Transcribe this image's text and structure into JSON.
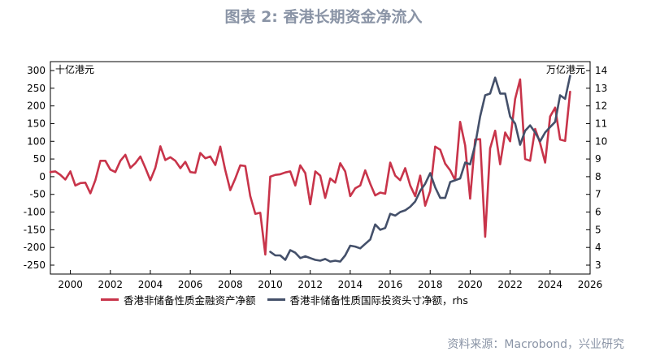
{
  "title": "图表 2:  香港长期资金净流入",
  "source": "资料来源：Macrobond，兴业研究",
  "chart_data": {
    "type": "line",
    "left_unit": "十亿港元",
    "right_unit": "万亿港元",
    "ylim_left": [
      -250,
      300
    ],
    "yticks_left": [
      -250,
      -200,
      -150,
      -100,
      -50,
      0,
      50,
      100,
      150,
      200,
      250,
      300
    ],
    "ylim_right": [
      3,
      14
    ],
    "yticks_right": [
      3,
      4,
      5,
      6,
      7,
      8,
      9,
      10,
      11,
      12,
      13,
      14
    ],
    "xlim": [
      1999,
      2026
    ],
    "xticks": [
      "2000",
      "2002",
      "2004",
      "2006",
      "2008",
      "2010",
      "2012",
      "2014",
      "2016",
      "2018",
      "2020",
      "2022",
      "2024",
      "2026"
    ],
    "series": [
      {
        "name": "香港非储备性质金融资产净额",
        "axis": "left",
        "color": "#c8344a",
        "x": [
          1999.0,
          1999.25,
          1999.5,
          1999.75,
          2000.0,
          2000.25,
          2000.5,
          2000.75,
          2001.0,
          2001.25,
          2001.5,
          2001.75,
          2002.0,
          2002.25,
          2002.5,
          2002.75,
          2003.0,
          2003.25,
          2003.5,
          2003.75,
          2004.0,
          2004.25,
          2004.5,
          2004.75,
          2005.0,
          2005.25,
          2005.5,
          2005.75,
          2006.0,
          2006.25,
          2006.5,
          2006.75,
          2007.0,
          2007.25,
          2007.5,
          2007.75,
          2008.0,
          2008.25,
          2008.5,
          2008.75,
          2009.0,
          2009.25,
          2009.5,
          2009.75,
          2010.0,
          2010.25,
          2010.5,
          2010.75,
          2011.0,
          2011.25,
          2011.5,
          2011.75,
          2012.0,
          2012.25,
          2012.5,
          2012.75,
          2013.0,
          2013.25,
          2013.5,
          2013.75,
          2014.0,
          2014.25,
          2014.5,
          2014.75,
          2015.0,
          2015.25,
          2015.5,
          2015.75,
          2016.0,
          2016.25,
          2016.5,
          2016.75,
          2017.0,
          2017.25,
          2017.5,
          2017.75,
          2018.0,
          2018.25,
          2018.5,
          2018.75,
          2019.0,
          2019.25,
          2019.5,
          2019.75,
          2020.0,
          2020.25,
          2020.5,
          2020.75,
          2021.0,
          2021.25,
          2021.5,
          2021.75,
          2022.0,
          2022.25,
          2022.5,
          2022.75,
          2023.0,
          2023.25,
          2023.5,
          2023.75,
          2024.0,
          2024.25,
          2024.5,
          2024.75,
          2025.0
        ],
        "values": [
          13,
          15,
          5,
          -8,
          15,
          -25,
          -18,
          -17,
          -47,
          -10,
          45,
          45,
          20,
          13,
          45,
          62,
          25,
          38,
          57,
          25,
          -10,
          25,
          86,
          47,
          55,
          45,
          24,
          42,
          13,
          11,
          67,
          52,
          57,
          33,
          85,
          18,
          -38,
          -5,
          32,
          30,
          -55,
          -105,
          -102,
          -220,
          0,
          5,
          7,
          12,
          15,
          -25,
          32,
          10,
          -78,
          15,
          3,
          -60,
          -5,
          -17,
          38,
          15,
          -55,
          -33,
          -25,
          18,
          -20,
          -53,
          -45,
          -48,
          40,
          3,
          -10,
          24,
          -25,
          -55,
          3,
          -82,
          -40,
          85,
          76,
          37,
          18,
          -10,
          155,
          88,
          -62,
          105,
          106,
          -170,
          80,
          130,
          35,
          125,
          100,
          220,
          275,
          50,
          45,
          135,
          95,
          40,
          170,
          195,
          105,
          101,
          240
        ]
      },
      {
        "name": "香港非储备性质国际投资头寸净额，rhs",
        "axis": "right",
        "color": "#44506a",
        "x": [
          2010.0,
          2010.25,
          2010.5,
          2010.75,
          2011.0,
          2011.25,
          2011.5,
          2011.75,
          2012.0,
          2012.25,
          2012.5,
          2012.75,
          2013.0,
          2013.25,
          2013.5,
          2013.75,
          2014.0,
          2014.25,
          2014.5,
          2014.75,
          2015.0,
          2015.25,
          2015.5,
          2015.75,
          2016.0,
          2016.25,
          2016.5,
          2016.75,
          2017.0,
          2017.25,
          2017.5,
          2017.75,
          2018.0,
          2018.25,
          2018.5,
          2018.75,
          2019.0,
          2019.25,
          2019.5,
          2019.75,
          2020.0,
          2020.25,
          2020.5,
          2020.75,
          2021.0,
          2021.25,
          2021.5,
          2021.75,
          2022.0,
          2022.25,
          2022.5,
          2022.75,
          2023.0,
          2023.25,
          2023.5,
          2023.75,
          2024.0,
          2024.25,
          2024.5,
          2024.75,
          2025.0
        ],
        "values": [
          3.75,
          3.55,
          3.55,
          3.3,
          3.85,
          3.7,
          3.4,
          3.5,
          3.4,
          3.3,
          3.25,
          3.35,
          3.2,
          3.25,
          3.2,
          3.55,
          4.1,
          4.05,
          3.95,
          4.2,
          4.45,
          5.3,
          5.0,
          5.1,
          5.9,
          5.8,
          6.0,
          6.1,
          6.3,
          6.6,
          7.2,
          7.6,
          8.2,
          7.4,
          6.8,
          6.8,
          7.7,
          7.8,
          7.9,
          8.8,
          8.7,
          9.8,
          11.4,
          12.6,
          12.7,
          13.6,
          12.7,
          12.7,
          11.4,
          11.0,
          9.8,
          10.6,
          10.9,
          10.5,
          10.0,
          10.5,
          10.8,
          11.1,
          12.6,
          12.4,
          13.7
        ]
      }
    ]
  }
}
